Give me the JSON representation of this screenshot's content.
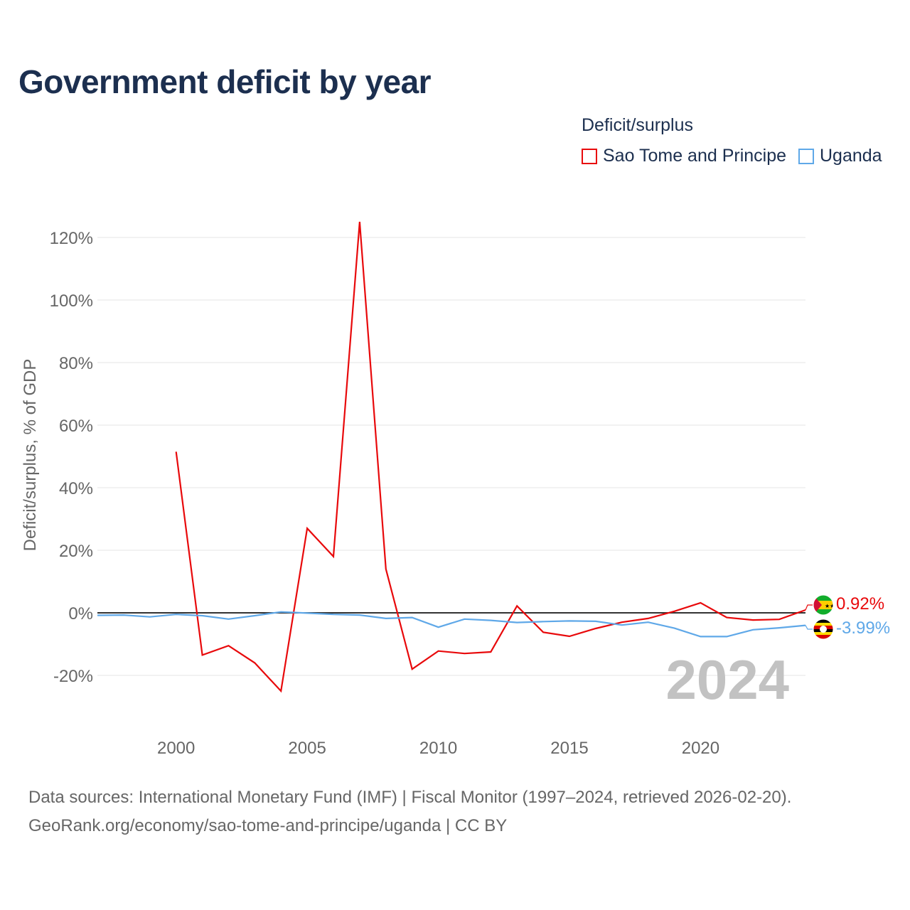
{
  "title": "Government deficit by year",
  "legend": {
    "title": "Deficit/surplus",
    "items": [
      {
        "label": "Sao Tome and Principe",
        "color": "#e8090b"
      },
      {
        "label": "Uganda",
        "color": "#5fa8e8"
      }
    ]
  },
  "footer": {
    "source": "Data sources: International Monetary Fund (IMF) | Fiscal Monitor (1997–2024, retrieved 2026-02-20).",
    "credit": "GeoRank.org/economy/sao-tome-and-principe/uganda | CC BY"
  },
  "chart_data": {
    "type": "line",
    "title": "Government deficit by year",
    "xlabel": "",
    "ylabel": "Deficit/surplus, % of GDP",
    "year_label": "2024",
    "xlim": [
      1997,
      2024
    ],
    "ylim": [
      -28,
      125
    ],
    "x_ticks": [
      2000,
      2005,
      2010,
      2015,
      2020
    ],
    "y_ticks": [
      -20,
      0,
      20,
      40,
      60,
      80,
      100,
      120
    ],
    "y_tick_labels": [
      "-20%",
      "0%",
      "20%",
      "40%",
      "60%",
      "80%",
      "100%",
      "120%"
    ],
    "grid": true,
    "zero_line": true,
    "series": [
      {
        "name": "Sao Tome and Principe",
        "color": "#e8090b",
        "end_label": "0.92%",
        "flag": "sao-tome-and-principe-flag",
        "x": [
          2000,
          2001,
          2002,
          2003,
          2004,
          2005,
          2006,
          2007,
          2008,
          2009,
          2010,
          2011,
          2012,
          2013,
          2014,
          2015,
          2016,
          2017,
          2018,
          2019,
          2020,
          2021,
          2022,
          2023,
          2024
        ],
        "values": [
          51.5,
          -13.5,
          -10.5,
          -16,
          -25,
          27,
          18,
          125,
          14,
          -18,
          -12.2,
          -13,
          -12.5,
          2.2,
          -6.2,
          -7.5,
          -5,
          -3,
          -1.8,
          0.5,
          3.2,
          -1.5,
          -2.3,
          -2.1,
          0.92
        ]
      },
      {
        "name": "Uganda",
        "color": "#5fa8e8",
        "end_label": "-3.99%",
        "flag": "uganda-flag",
        "x": [
          1997,
          1998,
          1999,
          2000,
          2001,
          2002,
          2003,
          2004,
          2005,
          2006,
          2007,
          2008,
          2009,
          2010,
          2011,
          2012,
          2013,
          2014,
          2015,
          2016,
          2017,
          2018,
          2019,
          2020,
          2021,
          2022,
          2023,
          2024
        ],
        "values": [
          -0.8,
          -0.7,
          -1.3,
          -0.5,
          -0.9,
          -2,
          -0.9,
          0.3,
          -0.1,
          -0.5,
          -0.7,
          -1.8,
          -1.5,
          -4.6,
          -2,
          -2.4,
          -3.1,
          -2.8,
          -2.6,
          -2.7,
          -3.9,
          -3,
          -4.9,
          -7.6,
          -7.6,
          -5.4,
          -4.8,
          -3.99
        ]
      }
    ]
  }
}
